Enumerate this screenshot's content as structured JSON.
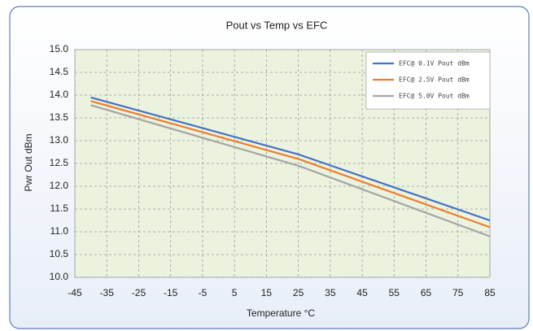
{
  "chart_data": {
    "type": "line",
    "title": "Pout vs Temp vs EFC",
    "x_label": "Temperature °C",
    "y_label": "Pwr Out dBm",
    "x": [
      -40,
      25,
      85
    ],
    "series": [
      {
        "name": "EFC@ 0.1V Pout dBm",
        "color": "#4472c4",
        "values": [
          13.95,
          12.7,
          11.25
        ]
      },
      {
        "name": "EFC@ 2.5V Pout dBm",
        "color": "#ed7d31",
        "values": [
          13.87,
          12.6,
          11.1
        ]
      },
      {
        "name": "EFC@ 5.0V Pout dBm",
        "color": "#a5a5a5",
        "values": [
          13.78,
          12.45,
          10.9
        ]
      }
    ],
    "xlim": [
      -45,
      85
    ],
    "xticks": [
      -45,
      -35,
      -25,
      -15,
      -5,
      5,
      15,
      25,
      35,
      45,
      55,
      65,
      75,
      85
    ],
    "ylim": [
      10,
      15
    ],
    "yticks": [
      {
        "value": 10,
        "label": "10.0"
      },
      10.5,
      {
        "value": 11,
        "label": "11.0"
      },
      11.5,
      {
        "value": 12,
        "label": "12.0"
      },
      12.5,
      {
        "value": 13,
        "label": "13.0"
      },
      13.5,
      {
        "value": 14,
        "label": "14.0"
      },
      14.5,
      {
        "value": 15,
        "label": "15.0"
      }
    ],
    "grid": true,
    "legend": "top-right"
  }
}
